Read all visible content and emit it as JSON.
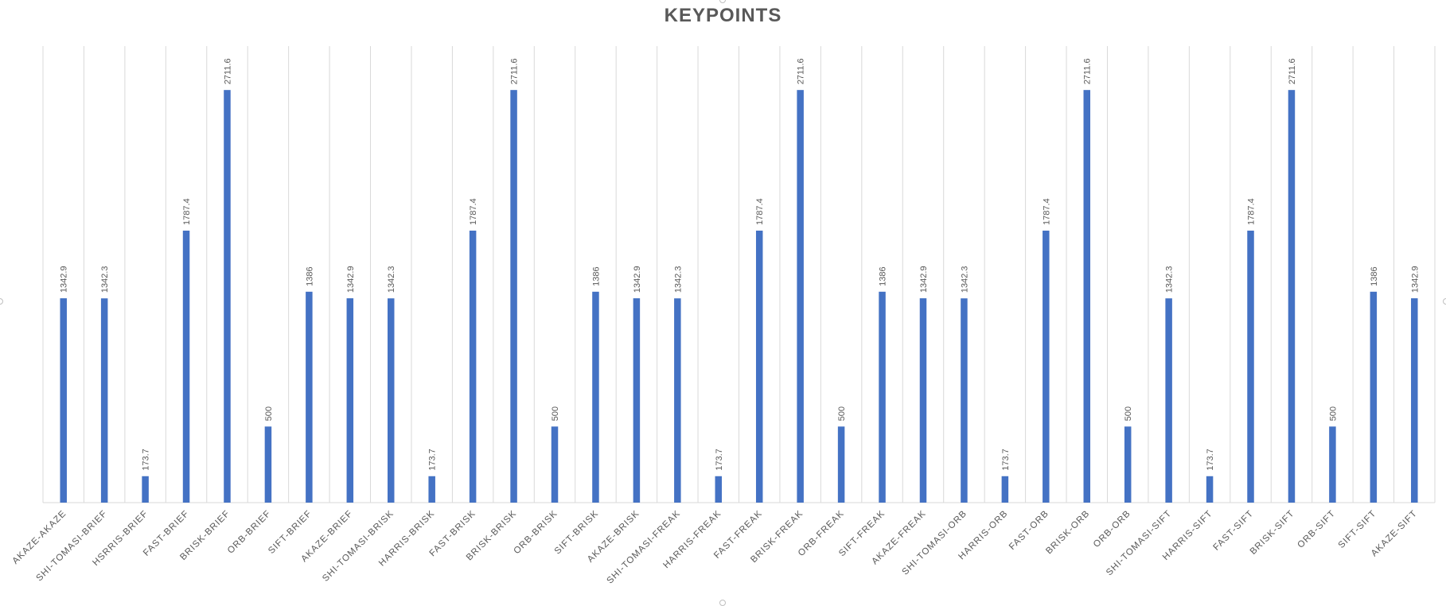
{
  "chart_data": {
    "type": "bar",
    "title": "KEYPOINTS",
    "xlabel": "",
    "ylabel": "",
    "ylim": [
      0,
      3000
    ],
    "grid": "vertical",
    "legend": "none",
    "bar_color": "#4472C4",
    "categories": [
      "AKAZE-AKAZE",
      "SHI-TOMASI-BRIEF",
      "HSRRIS-BRIEF",
      "FAST-BRIEF",
      "BRISK-BRIEF",
      "ORB-BRIEF",
      "SIFT-BRIEF",
      "AKAZE-BRIEF",
      "SHI-TOMASI-BRISK",
      "HARRIS-BRISK",
      "FAST-BRISK",
      "BRISK-BRISK",
      "ORB-BRISK",
      "SIFT-BRISK",
      "AKAZE-BRISK",
      "SHI-TOMASI-FREAK",
      "HARRIS-FREAK",
      "FAST-FREAK",
      "BRISK-FREAK",
      "ORB-FREAK",
      "SIFT-FREAK",
      "AKAZE-FREAK",
      "SHI-TOMASI-ORB",
      "HARRIS-ORB",
      "FAST-ORB",
      "BRISK-ORB",
      "ORB-ORB",
      "SHI-TOMASI-SIFT",
      "HARRIS-SIFT",
      "FAST-SIFT",
      "BRISK-SIFT",
      "ORB-SIFT",
      "SIFT-SIFT",
      "AKAZE-SIFT"
    ],
    "values": [
      1342.9,
      1342.3,
      173.7,
      1787.4,
      2711.6,
      500,
      1386,
      1342.9,
      1342.3,
      173.7,
      1787.4,
      2711.6,
      500,
      1386,
      1342.9,
      1342.3,
      173.7,
      1787.4,
      2711.6,
      500,
      1386,
      1342.9,
      1342.3,
      173.7,
      1787.4,
      2711.6,
      500,
      1342.3,
      173.7,
      1787.4,
      2711.6,
      500,
      1386,
      1342.9
    ],
    "data_labels": [
      "1342.9",
      "1342.3",
      "173.7",
      "1787.4",
      "2711.6",
      "500",
      "1386",
      "1342.9",
      "1342.3",
      "173.7",
      "1787.4",
      "2711.6",
      "500",
      "1386",
      "1342.9",
      "1342.3",
      "173.7",
      "1787.4",
      "2711.6",
      "500",
      "1386",
      "1342.9",
      "1342.3",
      "173.7",
      "1787.4",
      "2711.6",
      "500",
      "1342.3",
      "173.7",
      "1787.4",
      "2711.6",
      "500",
      "1386",
      "1342.9"
    ]
  }
}
